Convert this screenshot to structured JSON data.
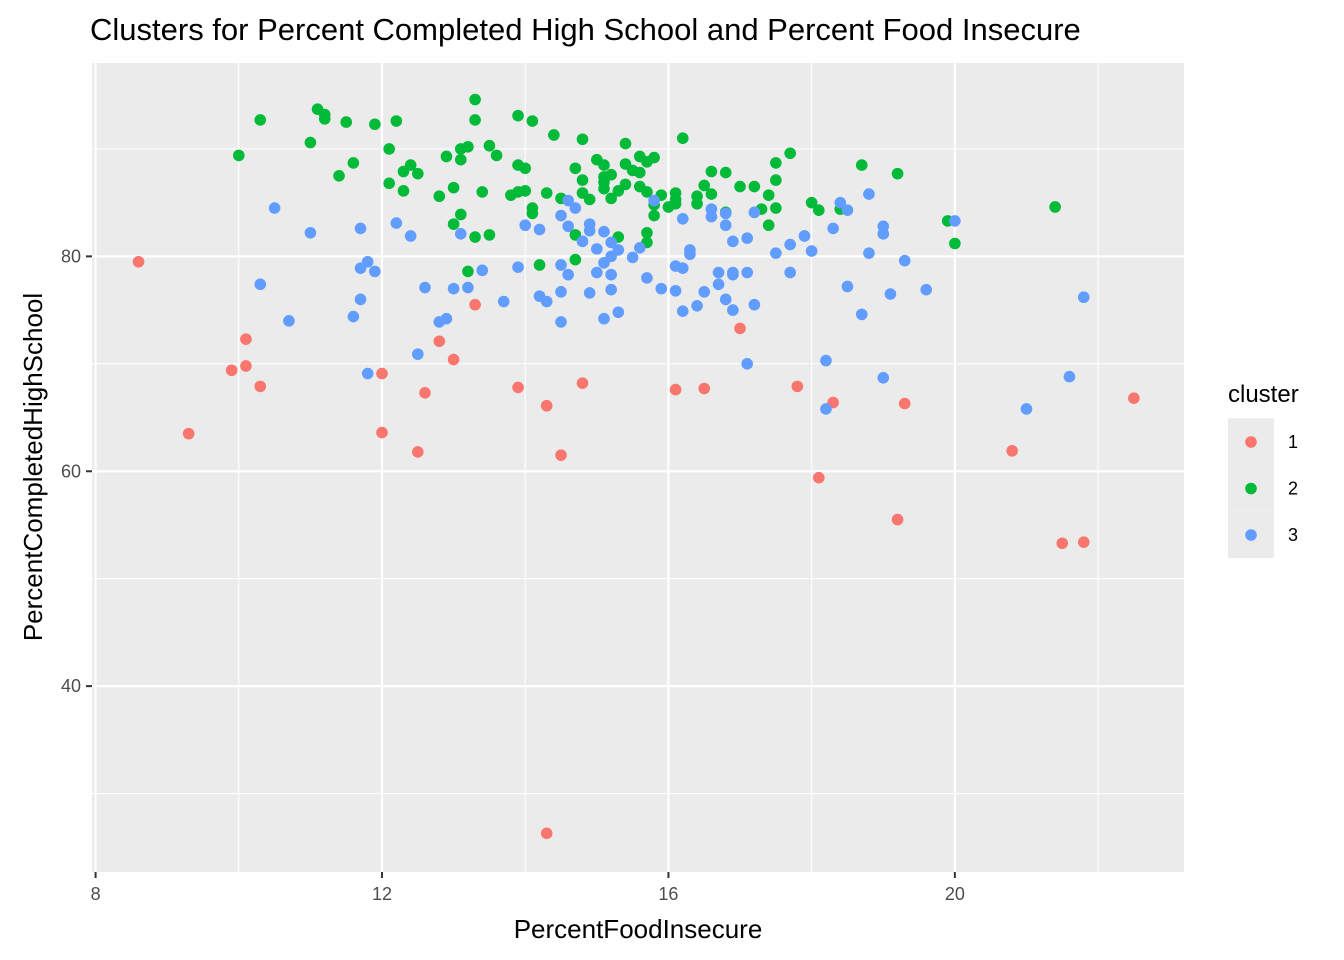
{
  "chart_data": {
    "type": "scatter",
    "title": "Clusters for Percent Completed High School and Percent Food Insecure",
    "xlabel": "PercentFoodInsecure",
    "ylabel": "PercentCompletedHighSchool",
    "xlim": [
      7.95,
      23.2
    ],
    "ylim": [
      22.7,
      98.0
    ],
    "x_ticks": [
      8,
      12,
      16,
      20
    ],
    "x_ticks_labels": [
      "8",
      "12",
      "16",
      "20"
    ],
    "x_minor": [
      10,
      14,
      18,
      22
    ],
    "y_ticks": [
      40,
      60,
      80
    ],
    "y_ticks_labels": [
      "40",
      "60",
      "80"
    ],
    "y_minor": [
      30,
      50,
      70,
      90
    ],
    "grid": true,
    "legend": {
      "title": "cluster",
      "position": "right"
    },
    "colors": {
      "panel": "#ebebeb",
      "grid": "#ffffff"
    },
    "series": [
      {
        "name": "1",
        "color": "#F8766D",
        "points": [
          [
            8.6,
            79.5
          ],
          [
            9.3,
            63.5
          ],
          [
            9.9,
            69.4
          ],
          [
            10.1,
            72.3
          ],
          [
            10.1,
            69.8
          ],
          [
            10.3,
            67.9
          ],
          [
            12.0,
            69.1
          ],
          [
            12.0,
            63.6
          ],
          [
            12.5,
            61.8
          ],
          [
            12.6,
            67.3
          ],
          [
            12.8,
            72.1
          ],
          [
            13.0,
            70.4
          ],
          [
            13.3,
            75.5
          ],
          [
            13.9,
            67.8
          ],
          [
            14.3,
            66.1
          ],
          [
            14.5,
            61.5
          ],
          [
            14.8,
            68.2
          ],
          [
            14.3,
            26.3
          ],
          [
            16.1,
            67.6
          ],
          [
            16.5,
            67.7
          ],
          [
            17.0,
            73.3
          ],
          [
            17.8,
            67.9
          ],
          [
            18.1,
            59.4
          ],
          [
            18.3,
            66.4
          ],
          [
            19.2,
            55.5
          ],
          [
            19.3,
            66.3
          ],
          [
            20.8,
            61.9
          ],
          [
            21.5,
            53.3
          ],
          [
            21.8,
            53.4
          ],
          [
            22.5,
            66.8
          ]
        ]
      },
      {
        "name": "2",
        "color": "#00BA38",
        "points": [
          [
            10.0,
            89.4
          ],
          [
            10.3,
            92.7
          ],
          [
            11.0,
            90.6
          ],
          [
            11.1,
            93.7
          ],
          [
            11.2,
            93.2
          ],
          [
            11.2,
            92.8
          ],
          [
            11.4,
            87.5
          ],
          [
            11.5,
            92.5
          ],
          [
            11.6,
            88.7
          ],
          [
            11.9,
            92.3
          ],
          [
            12.1,
            90.0
          ],
          [
            12.1,
            86.8
          ],
          [
            12.2,
            92.6
          ],
          [
            12.3,
            87.9
          ],
          [
            12.3,
            86.1
          ],
          [
            12.4,
            88.5
          ],
          [
            12.5,
            87.7
          ],
          [
            12.8,
            85.6
          ],
          [
            12.9,
            89.3
          ],
          [
            13.0,
            86.4
          ],
          [
            13.0,
            83.0
          ],
          [
            13.1,
            89.0
          ],
          [
            13.1,
            90.0
          ],
          [
            13.1,
            83.9
          ],
          [
            13.2,
            90.2
          ],
          [
            13.2,
            78.6
          ],
          [
            13.3,
            94.6
          ],
          [
            13.3,
            92.7
          ],
          [
            13.3,
            81.8
          ],
          [
            13.4,
            86.0
          ],
          [
            13.5,
            90.3
          ],
          [
            13.5,
            82.0
          ],
          [
            13.6,
            89.4
          ],
          [
            13.8,
            85.7
          ],
          [
            13.9,
            93.1
          ],
          [
            13.9,
            88.5
          ],
          [
            13.9,
            86.0
          ],
          [
            14.0,
            88.2
          ],
          [
            14.0,
            86.1
          ],
          [
            14.1,
            92.6
          ],
          [
            14.1,
            84.5
          ],
          [
            14.1,
            84.0
          ],
          [
            14.2,
            79.2
          ],
          [
            14.3,
            85.9
          ],
          [
            14.4,
            91.3
          ],
          [
            14.5,
            85.4
          ],
          [
            14.7,
            88.2
          ],
          [
            14.7,
            82.0
          ],
          [
            14.7,
            79.7
          ],
          [
            14.8,
            90.9
          ],
          [
            14.8,
            87.1
          ],
          [
            14.8,
            85.9
          ],
          [
            14.9,
            85.3
          ],
          [
            15.0,
            89.0
          ],
          [
            15.1,
            88.5
          ],
          [
            15.1,
            87.4
          ],
          [
            15.1,
            86.9
          ],
          [
            15.1,
            86.3
          ],
          [
            15.2,
            87.6
          ],
          [
            15.2,
            85.4
          ],
          [
            15.3,
            86.1
          ],
          [
            15.3,
            81.8
          ],
          [
            15.4,
            90.5
          ],
          [
            15.4,
            88.6
          ],
          [
            15.4,
            86.7
          ],
          [
            15.5,
            88.0
          ],
          [
            15.6,
            89.3
          ],
          [
            15.6,
            87.8
          ],
          [
            15.6,
            86.5
          ],
          [
            15.7,
            88.8
          ],
          [
            15.7,
            86.0
          ],
          [
            15.7,
            82.2
          ],
          [
            15.7,
            81.3
          ],
          [
            15.8,
            89.2
          ],
          [
            15.8,
            84.8
          ],
          [
            15.8,
            83.8
          ],
          [
            15.9,
            85.7
          ],
          [
            16.0,
            84.6
          ],
          [
            16.1,
            85.9
          ],
          [
            16.1,
            85.3
          ],
          [
            16.1,
            84.9
          ],
          [
            16.2,
            91.0
          ],
          [
            16.4,
            85.6
          ],
          [
            16.4,
            84.9
          ],
          [
            16.5,
            86.6
          ],
          [
            16.6,
            87.9
          ],
          [
            16.6,
            85.8
          ],
          [
            16.8,
            87.8
          ],
          [
            16.8,
            84.1
          ],
          [
            17.0,
            86.5
          ],
          [
            17.2,
            86.5
          ],
          [
            17.3,
            84.4
          ],
          [
            17.4,
            85.7
          ],
          [
            17.4,
            82.9
          ],
          [
            17.5,
            88.7
          ],
          [
            17.5,
            87.1
          ],
          [
            17.5,
            84.5
          ],
          [
            17.7,
            89.6
          ],
          [
            18.0,
            85.0
          ],
          [
            18.1,
            84.3
          ],
          [
            18.4,
            84.4
          ],
          [
            18.7,
            88.5
          ],
          [
            19.2,
            87.7
          ],
          [
            19.9,
            83.3
          ],
          [
            20.0,
            81.2
          ],
          [
            21.4,
            84.6
          ]
        ]
      },
      {
        "name": "3",
        "color": "#619CFF",
        "points": [
          [
            10.3,
            77.4
          ],
          [
            10.5,
            84.5
          ],
          [
            10.7,
            74.0
          ],
          [
            11.0,
            82.2
          ],
          [
            11.6,
            74.4
          ],
          [
            11.7,
            82.6
          ],
          [
            11.7,
            78.9
          ],
          [
            11.7,
            76.0
          ],
          [
            11.8,
            79.5
          ],
          [
            11.8,
            69.1
          ],
          [
            11.9,
            78.6
          ],
          [
            12.2,
            83.1
          ],
          [
            12.4,
            81.9
          ],
          [
            12.5,
            70.9
          ],
          [
            12.6,
            77.1
          ],
          [
            12.8,
            73.9
          ],
          [
            12.9,
            74.2
          ],
          [
            13.0,
            77.0
          ],
          [
            13.1,
            82.1
          ],
          [
            13.2,
            77.1
          ],
          [
            13.4,
            78.7
          ],
          [
            13.7,
            75.8
          ],
          [
            13.9,
            79.0
          ],
          [
            14.0,
            82.9
          ],
          [
            14.2,
            82.5
          ],
          [
            14.2,
            76.3
          ],
          [
            14.3,
            75.8
          ],
          [
            14.5,
            83.8
          ],
          [
            14.5,
            79.2
          ],
          [
            14.5,
            76.7
          ],
          [
            14.5,
            73.9
          ],
          [
            14.6,
            85.2
          ],
          [
            14.6,
            82.8
          ],
          [
            14.6,
            78.3
          ],
          [
            14.7,
            84.5
          ],
          [
            14.8,
            81.4
          ],
          [
            14.9,
            83.0
          ],
          [
            14.9,
            82.4
          ],
          [
            14.9,
            76.6
          ],
          [
            15.0,
            80.7
          ],
          [
            15.0,
            78.5
          ],
          [
            15.1,
            82.3
          ],
          [
            15.1,
            79.4
          ],
          [
            15.1,
            74.2
          ],
          [
            15.2,
            81.3
          ],
          [
            15.2,
            80.0
          ],
          [
            15.2,
            78.3
          ],
          [
            15.2,
            76.9
          ],
          [
            15.3,
            80.6
          ],
          [
            15.3,
            74.8
          ],
          [
            15.5,
            79.9
          ],
          [
            15.6,
            80.8
          ],
          [
            15.7,
            78.0
          ],
          [
            15.8,
            85.2
          ],
          [
            15.9,
            77.0
          ],
          [
            16.1,
            79.1
          ],
          [
            16.1,
            76.8
          ],
          [
            16.2,
            83.5
          ],
          [
            16.2,
            78.9
          ],
          [
            16.2,
            74.9
          ],
          [
            16.3,
            80.6
          ],
          [
            16.3,
            80.2
          ],
          [
            16.4,
            75.4
          ],
          [
            16.5,
            76.7
          ],
          [
            16.6,
            84.4
          ],
          [
            16.6,
            83.7
          ],
          [
            16.7,
            78.5
          ],
          [
            16.7,
            77.4
          ],
          [
            16.8,
            84.0
          ],
          [
            16.8,
            82.9
          ],
          [
            16.8,
            76.0
          ],
          [
            16.9,
            81.4
          ],
          [
            16.9,
            78.5
          ],
          [
            16.9,
            78.3
          ],
          [
            16.9,
            75.0
          ],
          [
            17.1,
            81.7
          ],
          [
            17.1,
            78.5
          ],
          [
            17.1,
            70.0
          ],
          [
            17.2,
            84.1
          ],
          [
            17.2,
            75.5
          ],
          [
            17.5,
            80.3
          ],
          [
            17.7,
            81.1
          ],
          [
            17.7,
            78.5
          ],
          [
            17.9,
            81.9
          ],
          [
            18.0,
            80.5
          ],
          [
            18.2,
            70.3
          ],
          [
            18.2,
            65.8
          ],
          [
            18.3,
            82.6
          ],
          [
            18.4,
            85.0
          ],
          [
            18.5,
            84.3
          ],
          [
            18.5,
            77.2
          ],
          [
            18.7,
            74.6
          ],
          [
            18.8,
            85.8
          ],
          [
            18.8,
            80.3
          ],
          [
            19.0,
            82.8
          ],
          [
            19.0,
            82.1
          ],
          [
            19.0,
            68.7
          ],
          [
            19.1,
            76.5
          ],
          [
            19.3,
            79.6
          ],
          [
            19.6,
            76.9
          ],
          [
            20.0,
            83.3
          ],
          [
            21.0,
            65.8
          ],
          [
            21.6,
            68.8
          ],
          [
            21.8,
            76.2
          ]
        ]
      }
    ]
  }
}
